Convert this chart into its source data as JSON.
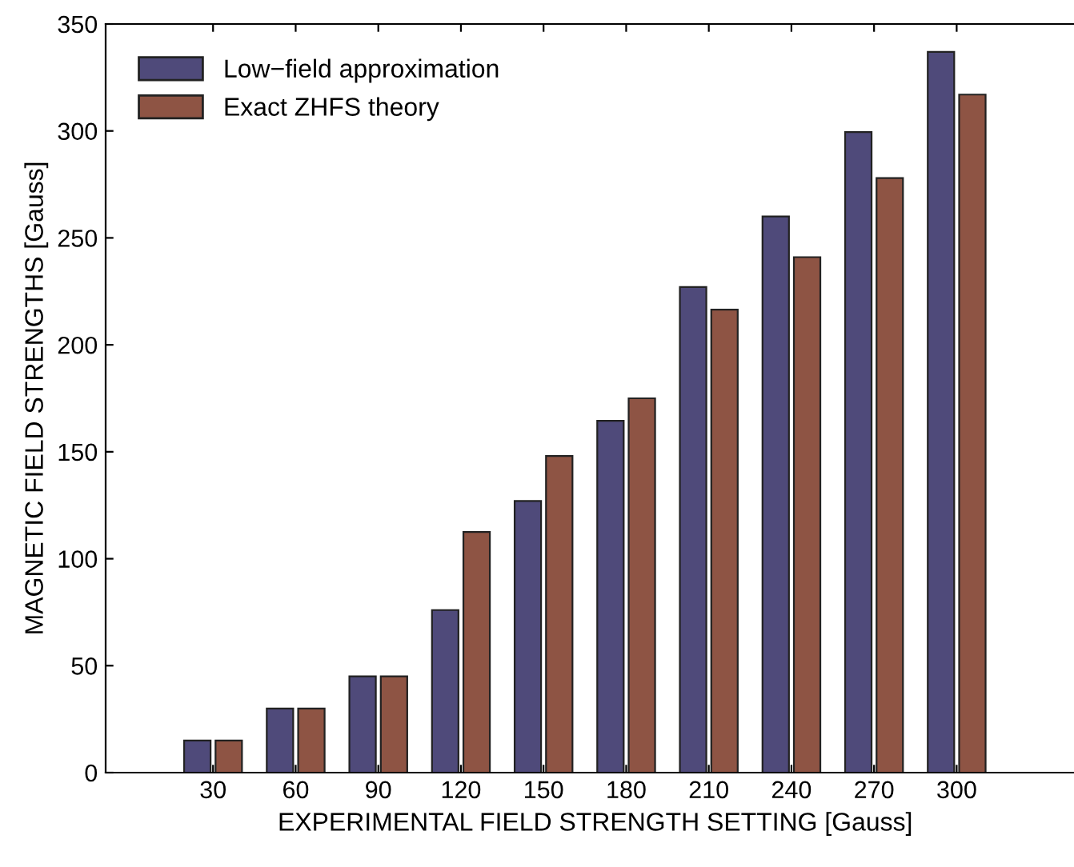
{
  "chart_data": {
    "type": "bar",
    "xlabel": "EXPERIMENTAL FIELD STRENGTH SETTING [Gauss]",
    "ylabel": "MAGNETIC FIELD STRENGTHS [Gauss]",
    "categories": [
      "30",
      "60",
      "90",
      "120",
      "150",
      "180",
      "210",
      "240",
      "270",
      "300"
    ],
    "series": [
      {
        "name": "Low−field approximation",
        "color": "#4f4a7a",
        "values": [
          15,
          30,
          45,
          76,
          127,
          164.5,
          227,
          260,
          299.5,
          337
        ]
      },
      {
        "name": "Exact ZHFS theory",
        "color": "#8e5444",
        "values": [
          15,
          30,
          45,
          112.5,
          148,
          175,
          216.5,
          241,
          278,
          317
        ]
      }
    ],
    "ylim": [
      0,
      350
    ],
    "yticks": [
      0,
      50,
      100,
      150,
      200,
      250,
      300,
      350
    ],
    "grid": false,
    "legend": "top left"
  }
}
